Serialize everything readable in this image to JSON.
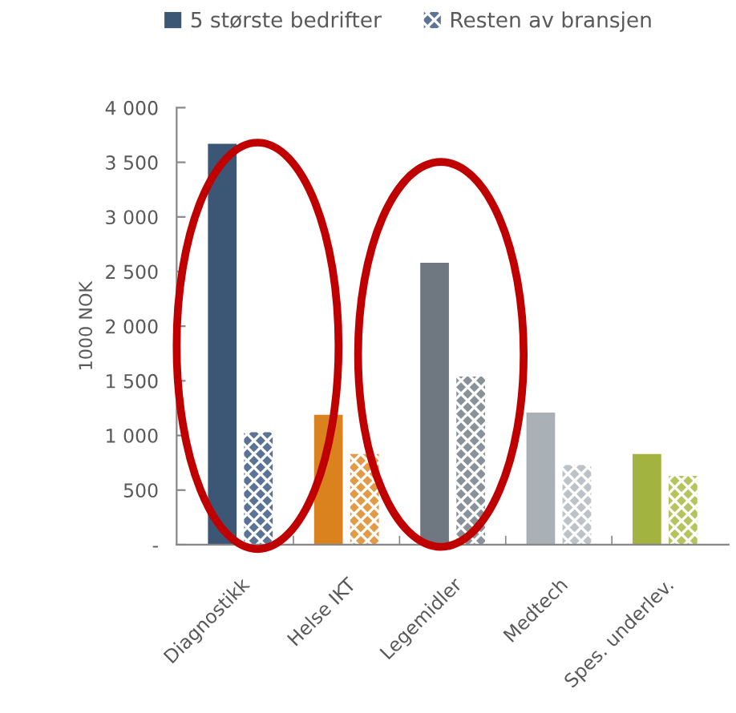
{
  "chart_data": {
    "type": "bar",
    "ylabel": "1000 NOK",
    "categories": [
      "Diagnostikk",
      "Helse IKT",
      "Legemidler",
      "Medtech",
      "Spes. underlev."
    ],
    "series": [
      {
        "name": "5 største bedrifter",
        "colors": [
          "#3c5675",
          "#d9821e",
          "#6f7880",
          "#a9b0b6",
          "#a2b340"
        ],
        "values": [
          3670,
          1190,
          2580,
          1210,
          830
        ]
      },
      {
        "name": "Resten av bransjen",
        "colors": [
          "#5a7396",
          "#e39a45",
          "#8a9299",
          "#bcc2c7",
          "#b6c45e"
        ],
        "values": [
          1030,
          830,
          1540,
          730,
          630
        ]
      }
    ],
    "ylim": [
      0,
      4000
    ],
    "yticks": [
      {
        "value": 0,
        "label": "-"
      },
      {
        "value": 500,
        "label": "500"
      },
      {
        "value": 1000,
        "label": "1 000"
      },
      {
        "value": 1500,
        "label": "1 500"
      },
      {
        "value": 2000,
        "label": "2 000"
      },
      {
        "value": 2500,
        "label": "2 500"
      },
      {
        "value": 3000,
        "label": "3 000"
      },
      {
        "value": 3500,
        "label": "3 500"
      },
      {
        "value": 4000,
        "label": "4 000"
      }
    ],
    "grid": false,
    "legend": "top"
  }
}
